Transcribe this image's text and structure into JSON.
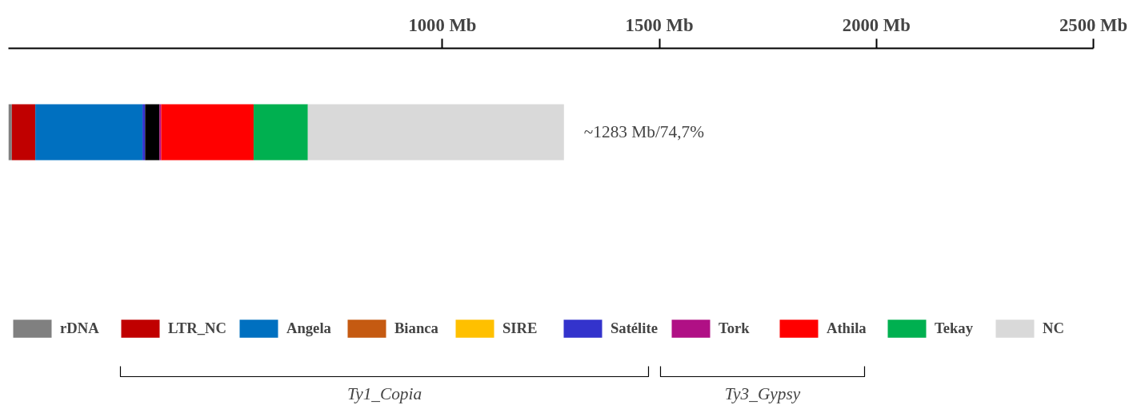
{
  "chart_data": {
    "type": "bar",
    "orientation": "horizontal",
    "stacked": true,
    "categories": [
      null
    ],
    "xlim": [
      0,
      2500
    ],
    "xticks": [
      {
        "value": 1000,
        "label": "1000 Mb"
      },
      {
        "value": 1500,
        "label": "1500 Mb"
      },
      {
        "value": 2000,
        "label": "2000 Mb"
      },
      {
        "value": 2500,
        "label": "2500 Mb"
      }
    ],
    "series": [
      {
        "name": "rDNA",
        "color": "#808080",
        "values": [
          8
        ]
      },
      {
        "name": "LTR_NC",
        "color": "#c00000",
        "values": [
          54
        ]
      },
      {
        "name": "Angela",
        "color": "#0070c0",
        "values": [
          247
        ]
      },
      {
        "name": "Bianca",
        "color": "#c55a11",
        "values": [
          0
        ]
      },
      {
        "name": "SIRE",
        "color": "#ffc000",
        "values": [
          0
        ]
      },
      {
        "name": "Satélite",
        "color": "#3333cc",
        "values": [
          6
        ]
      },
      {
        "color": "#000000",
        "values": [
          33
        ]
      },
      {
        "name": "Tork",
        "color": "#b01085",
        "values": [
          4
        ]
      },
      {
        "name": "Athila",
        "color": "#ff0000",
        "values": [
          213
        ]
      },
      {
        "name": "Tekay",
        "color": "#00b050",
        "values": [
          125
        ]
      },
      {
        "name": "NC",
        "color": "#d9d9d9",
        "values": [
          590
        ]
      }
    ],
    "legend": "bottom",
    "grid": false,
    "annotations": [
      "~1283 Mb/74,7%",
      "Ty1_Copia",
      "Ty3_Gypsy"
    ]
  }
}
